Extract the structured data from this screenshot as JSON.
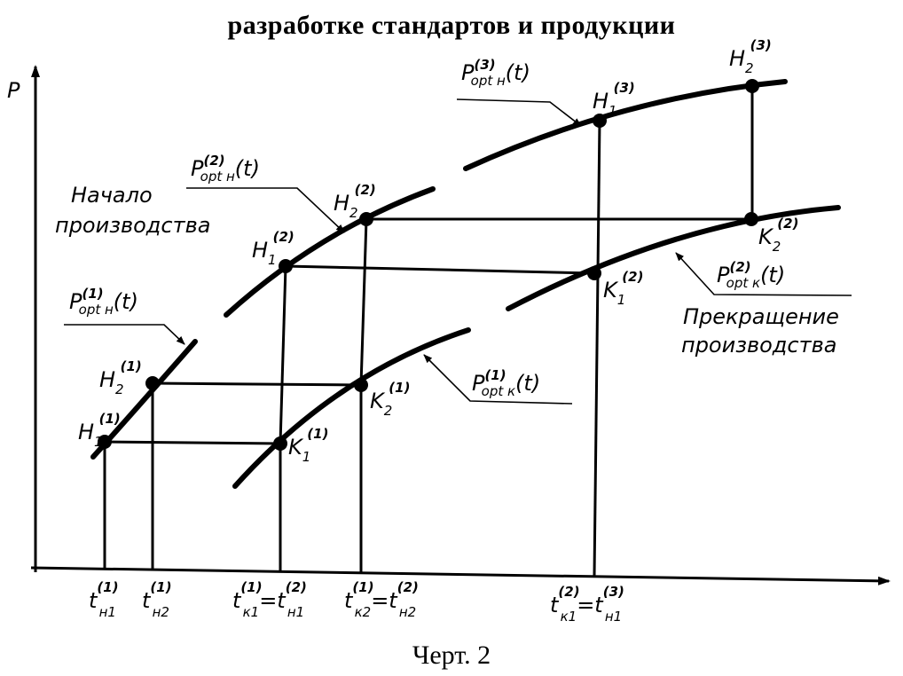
{
  "header": {
    "title": "разработке стандартов и продукции"
  },
  "caption": "Черт. 2",
  "axes": {
    "y": "P"
  },
  "curves": {
    "n1": {
      "base": "P",
      "sup": "(1)",
      "sub": "opt н",
      "arg": "(t)"
    },
    "n2": {
      "base": "P",
      "sup": "(2)",
      "sub": "opt н",
      "arg": "(t)"
    },
    "n3": {
      "base": "P",
      "sup": "(3)",
      "sub": "opt н",
      "arg": "(t)"
    },
    "k1": {
      "base": "P",
      "sup": "(1)",
      "sub": "opt к",
      "arg": "(t)"
    },
    "k2": {
      "base": "P",
      "sup": "(2)",
      "sub": "opt к",
      "arg": "(t)"
    }
  },
  "points": {
    "h11": {
      "base": "H",
      "sub": "1",
      "sup": "(1)"
    },
    "h21": {
      "base": "H",
      "sub": "2",
      "sup": "(1)"
    },
    "h12": {
      "base": "H",
      "sub": "1",
      "sup": "(2)"
    },
    "h22": {
      "base": "H",
      "sub": "2",
      "sup": "(2)"
    },
    "h13": {
      "base": "H",
      "sub": "1",
      "sup": "(3)"
    },
    "h23": {
      "base": "H",
      "sub": "2",
      "sup": "(3)"
    },
    "k11": {
      "base": "K",
      "sub": "1",
      "sup": "(1)"
    },
    "k21": {
      "base": "K",
      "sub": "2",
      "sup": "(1)"
    },
    "k12": {
      "base": "K",
      "sub": "1",
      "sup": "(2)"
    },
    "k22": {
      "base": "K",
      "sub": "2",
      "sup": "(2)"
    }
  },
  "annotations": {
    "start": [
      "Начало",
      "производства"
    ],
    "stop": [
      "Прекращение",
      "производства"
    ]
  },
  "ticks": {
    "t1": {
      "a": "t",
      "asub": "н1",
      "asup": "(1)"
    },
    "t2": {
      "a": "t",
      "asub": "н2",
      "asup": "(1)"
    },
    "t3": {
      "a": "t",
      "asub": "к1",
      "asup": "(1)",
      "eq": "=",
      "b": "t",
      "bsub": "н1",
      "bsup": "(2)"
    },
    "t4": {
      "a": "t",
      "asub": "к2",
      "asup": "(1)",
      "eq": "=",
      "b": "t",
      "bsub": "н2",
      "bsup": "(2)"
    },
    "t5": {
      "a": "t",
      "asub": "к1",
      "asup": "(2)",
      "eq": "=",
      "b": "t",
      "bsub": "н1",
      "bsup": "(3)"
    }
  }
}
